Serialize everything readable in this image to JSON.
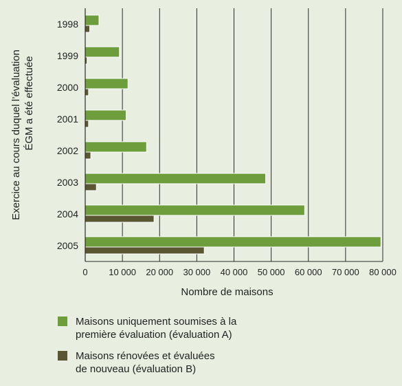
{
  "chart_data": {
    "type": "bar",
    "orientation": "horizontal",
    "categories": [
      "1998",
      "1999",
      "2000",
      "2001",
      "2002",
      "2003",
      "2004",
      "2005"
    ],
    "series": [
      {
        "name": "Maisons uniquement soumises à la première évaluation (évaluation A)",
        "legend_lines": [
          "Maisons uniquement soumises à la",
          "première évaluation (évaluation A)"
        ],
        "color": "#6e9d3b",
        "values": [
          3700,
          9200,
          11500,
          11000,
          16500,
          48500,
          59000,
          79500
        ]
      },
      {
        "name": "Maisons rénovées et évaluées de nouveau (évaluation B)",
        "legend_lines": [
          "Maisons rénovées et évaluées",
          "de nouveau (évaluation B)"
        ],
        "color": "#5a5631",
        "values": [
          1200,
          500,
          900,
          900,
          1500,
          3000,
          18500,
          32000
        ]
      }
    ],
    "xlabel": "Nombre de maisons",
    "ylabel_lines": [
      "Exercice au cours duquel l’évaluation",
      "ÉGM a été effectuée"
    ],
    "xlim": [
      0,
      80000
    ],
    "x_ticks": [
      0,
      10000,
      20000,
      30000,
      40000,
      50000,
      60000,
      70000,
      80000
    ],
    "x_tick_labels": [
      "0",
      "10 000",
      "20 000",
      "30 000",
      "40 000",
      "50 000",
      "60 000",
      "70 000",
      "80 000"
    ],
    "grid": "vertical",
    "legend_position": "bottom"
  }
}
